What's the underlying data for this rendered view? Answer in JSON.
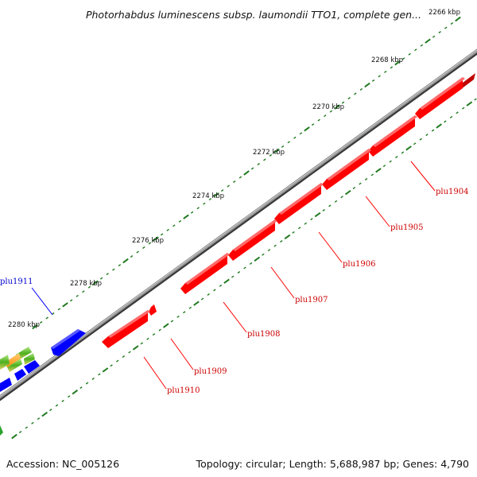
{
  "title": "Photorhabdus luminescens subsp. laumondii TTO1, complete gen...",
  "footer": {
    "accession": "Accession: NC_005126",
    "summary": "Topology: circular; Length: 5,688,987 bp; Genes: 4,790"
  },
  "tick_labels": [
    "2266 kbp",
    "2268 kbp",
    "2270 kbp",
    "2272 kbp",
    "2274 kbp",
    "2276 kbp",
    "2278 kbp",
    "2280 kbp"
  ],
  "genes": [
    {
      "label": "plu1904",
      "strand": "reverse",
      "color": "#ff0000"
    },
    {
      "label": "plu1905",
      "strand": "reverse",
      "color": "#ff0000"
    },
    {
      "label": "plu1906",
      "strand": "reverse",
      "color": "#ff0000"
    },
    {
      "label": "plu1907",
      "strand": "reverse",
      "color": "#ff0000"
    },
    {
      "label": "plu1908",
      "strand": "reverse",
      "color": "#ff0000"
    },
    {
      "label": "plu1909",
      "strand": "reverse",
      "color": "#ff0000"
    },
    {
      "label": "plu1910",
      "strand": "reverse",
      "color": "#ff0000"
    },
    {
      "label": "plu1911",
      "strand": "forward",
      "color": "#0000ff"
    }
  ],
  "colors": {
    "backbone": "#7a7a7a",
    "tick": "#1f7a1f",
    "reverse_gene": "#ff0000",
    "forward_gene": "#0000ff",
    "label_reverse": "#cc0000",
    "label_forward": "#0000cc"
  }
}
